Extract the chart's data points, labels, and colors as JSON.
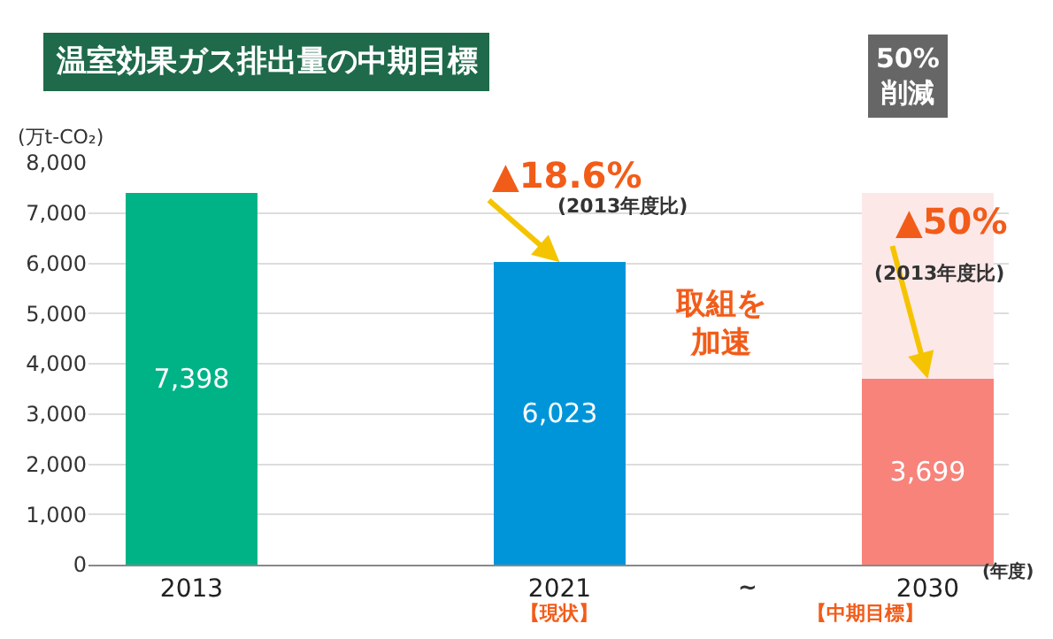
{
  "chart_data": {
    "type": "bar",
    "title": "温室効果ガス排出量の中期目標",
    "ylabel": "(万t-CO₂)",
    "categories": [
      "2013",
      "2021",
      "2030"
    ],
    "stacked": true,
    "series": [
      {
        "colors": [
          "#00b386",
          "#0095d9",
          "#f7837a"
        ],
        "values": [
          7398,
          6023,
          3699
        ],
        "value_labels": [
          "7,398",
          "6,023",
          "3,699"
        ]
      },
      {
        "color": "#fde8e8",
        "values": [
          null,
          null,
          3699
        ]
      }
    ],
    "ylim": [
      0,
      8000
    ],
    "yticks": [
      0,
      {
        "value": 1000,
        "label": "1,000"
      },
      {
        "value": 2000,
        "label": "2,000"
      },
      {
        "value": 3000,
        "label": "3,000"
      },
      {
        "value": 4000,
        "label": "4,000"
      },
      {
        "value": 5000,
        "label": "5,000"
      },
      {
        "value": 6000,
        "label": "6,000"
      },
      {
        "value": 7000,
        "label": "7,000"
      },
      {
        "value": 8000,
        "label": "8,000"
      }
    ],
    "grid": "y",
    "annotations": [
      {
        "text": "▲18.6%",
        "x": "2021",
        "y": 6023
      },
      "(2013年度比)",
      "取組を加速",
      {
        "text": "▲50%",
        "x": "2030",
        "y": 3699
      },
      "(2013年度比)",
      "50%\n削減",
      "【現状】",
      "【中期目標】",
      "~",
      "(年度)"
    ]
  }
}
